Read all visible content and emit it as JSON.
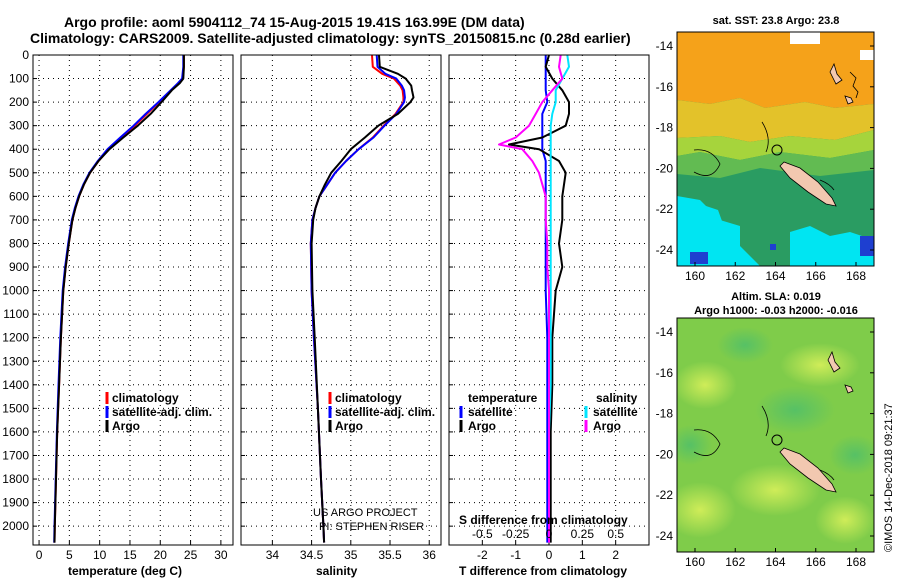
{
  "header": {
    "line1": "Argo profile: aoml 5904112_74 15-Aug-2015 19.41S 163.99E (DM data)",
    "line2": "Climatology: CARS2009. Satellite-adjusted climatology: synTS_20150815.nc (0.28d earlier)"
  },
  "credit": "©IMOS 14-Dec-2018 09:21:37",
  "depth_ticks": [
    0,
    100,
    200,
    300,
    400,
    500,
    600,
    700,
    800,
    900,
    1000,
    1100,
    1200,
    1300,
    1400,
    1500,
    1600,
    1700,
    1800,
    1900,
    2000
  ],
  "colors": {
    "climatology": "#ff0000",
    "satellite": "#0000ff",
    "argo": "#000000",
    "sal_satellite": "#00e5ff",
    "sal_climatology": "#ff00ff"
  },
  "chart_data": [
    {
      "type": "line",
      "xlabel": "temperature (deg C)",
      "ylabel": "",
      "xlim": [
        -1,
        32
      ],
      "ylim": [
        2080,
        0
      ],
      "x_ticks": [
        0,
        5,
        10,
        15,
        20,
        25,
        30
      ],
      "y": [
        0,
        50,
        100,
        120,
        150,
        200,
        250,
        300,
        350,
        400,
        450,
        500,
        550,
        600,
        650,
        700,
        800,
        900,
        1000,
        1200,
        1400,
        1600,
        1800,
        2000,
        2070
      ],
      "legend": [
        "climatology",
        "satellite-adj. clim.",
        "Argo"
      ],
      "series": [
        {
          "name": "climatology",
          "color": "#ff0000",
          "values": [
            23.9,
            23.9,
            23.7,
            23.0,
            21.8,
            19.8,
            17.8,
            15.8,
            13.6,
            11.5,
            9.8,
            8.4,
            7.4,
            6.6,
            6.0,
            5.5,
            4.9,
            4.4,
            4.0,
            3.6,
            3.3,
            3.0,
            2.8,
            2.6,
            2.55
          ]
        },
        {
          "name": "satellite-adj. clim.",
          "color": "#0000ff",
          "values": [
            23.8,
            23.8,
            23.6,
            22.9,
            21.7,
            19.7,
            17.6,
            15.6,
            13.4,
            11.3,
            9.7,
            8.3,
            7.3,
            6.5,
            5.9,
            5.4,
            4.8,
            4.3,
            3.9,
            3.5,
            3.2,
            2.95,
            2.75,
            2.55,
            2.5
          ]
        },
        {
          "name": "Argo",
          "color": "#000000",
          "values": [
            23.9,
            23.9,
            23.8,
            23.2,
            21.9,
            20.2,
            18.4,
            16.3,
            13.9,
            11.6,
            9.8,
            8.4,
            7.4,
            6.6,
            6.0,
            5.5,
            4.9,
            4.4,
            4.0,
            3.6,
            3.3,
            3.0,
            2.8,
            2.6,
            2.55
          ]
        }
      ]
    },
    {
      "type": "line",
      "xlabel": "salinity",
      "ylabel": "",
      "xlim": [
        33.6,
        36.15
      ],
      "ylim": [
        2080,
        0
      ],
      "x_ticks": [
        34,
        34.5,
        35,
        35.5,
        36
      ],
      "y": [
        0,
        50,
        80,
        100,
        130,
        150,
        180,
        200,
        250,
        300,
        350,
        400,
        450,
        500,
        550,
        600,
        650,
        700,
        800,
        1000,
        1200,
        1500,
        1800,
        2000,
        2070
      ],
      "legend": [
        "climatology",
        "satellite-adj. clim.",
        "Argo"
      ],
      "annotations": [
        "US ARGO PROJECT",
        "PI: STEPHEN RISER"
      ],
      "series": [
        {
          "name": "climatology",
          "color": "#ff0000",
          "values": [
            35.27,
            35.28,
            35.4,
            35.55,
            35.63,
            35.66,
            35.67,
            35.67,
            35.57,
            35.42,
            35.28,
            35.1,
            34.94,
            34.8,
            34.7,
            34.6,
            34.55,
            34.51,
            34.49,
            34.5,
            34.53,
            34.58,
            34.62,
            34.65,
            34.66
          ]
        },
        {
          "name": "satellite-adj. clim.",
          "color": "#0000ff",
          "values": [
            35.33,
            35.34,
            35.44,
            35.58,
            35.65,
            35.68,
            35.69,
            35.68,
            35.58,
            35.43,
            35.29,
            35.1,
            34.94,
            34.8,
            34.7,
            34.6,
            34.55,
            34.51,
            34.49,
            34.5,
            34.53,
            34.58,
            34.62,
            34.65,
            34.66
          ]
        },
        {
          "name": "Argo",
          "color": "#000000",
          "values": [
            35.36,
            35.37,
            35.6,
            35.7,
            35.77,
            35.78,
            35.8,
            35.76,
            35.6,
            35.35,
            35.18,
            35.0,
            34.88,
            34.75,
            34.67,
            34.6,
            34.55,
            34.52,
            34.5,
            34.51,
            34.54,
            34.58,
            34.62,
            34.65,
            34.66
          ]
        }
      ]
    },
    {
      "type": "line",
      "xlabel": "T difference from climatology",
      "title": "S difference from climatology",
      "ylabel": "",
      "xlim": [
        -3,
        3
      ],
      "ylim": [
        2080,
        0
      ],
      "x_ticks": [
        -2,
        -1,
        0,
        1,
        2
      ],
      "x_ticks_top": [
        "-0.5",
        "-0.25",
        "0",
        "0.25",
        "0.5"
      ],
      "y": [
        0,
        50,
        100,
        150,
        200,
        250,
        300,
        350,
        380,
        400,
        450,
        500,
        600,
        700,
        800,
        900,
        1000,
        1200,
        1400,
        1600,
        1800,
        2000,
        2070
      ],
      "legend_left_title": "temperature",
      "legend_right_title": "salinity",
      "legend": [
        "satellite",
        "Argo",
        "satellite",
        "Argo"
      ],
      "series": [
        {
          "name": "temperature satellite",
          "color": "#0000ff",
          "values": [
            -0.1,
            -0.1,
            -0.1,
            -0.1,
            -0.05,
            -0.2,
            -0.2,
            -0.2,
            -0.2,
            -0.2,
            -0.1,
            -0.1,
            -0.1,
            -0.1,
            -0.1,
            -0.1,
            -0.1,
            -0.05,
            -0.05,
            -0.05,
            -0.05,
            -0.05,
            -0.05
          ]
        },
        {
          "name": "temperature Argo",
          "color": "#000000",
          "values": [
            0.0,
            -0.1,
            0.1,
            0.4,
            0.6,
            0.6,
            0.5,
            -0.2,
            -1.2,
            -0.3,
            0.3,
            0.5,
            0.4,
            0.4,
            0.3,
            0.4,
            0.2,
            0.1,
            0.1,
            0.05,
            0.05,
            0.05,
            0.05
          ]
        },
        {
          "name": "salinity satellite",
          "color": "#00e5ff",
          "values": [
            0.55,
            0.6,
            0.4,
            0.2,
            0.2,
            0.1,
            0.05,
            0.05,
            0.05,
            0.05,
            0.05,
            0.05,
            0.05,
            0.05,
            0.05,
            0.05,
            0.05,
            0.05,
            0.05,
            0.0,
            0.0,
            0.0,
            0.0
          ]
        },
        {
          "name": "salinity Argo",
          "color": "#ff00ff",
          "values": [
            0.35,
            0.3,
            0.4,
            0.1,
            -0.2,
            -0.4,
            -0.6,
            -1.0,
            -1.5,
            -0.8,
            -0.5,
            -0.3,
            -0.1,
            -0.1,
            -0.05,
            -0.05,
            0.0,
            0.0,
            0.0,
            0.0,
            0.0,
            0.0,
            0.0
          ]
        }
      ]
    },
    {
      "type": "heatmap",
      "title": "sat. SST: 23.8 Argo: 23.8",
      "x_ticks": [
        "160",
        "162",
        "164",
        "166",
        "168"
      ],
      "y_ticks": [
        "-14",
        "-16",
        "-18",
        "-20",
        "-22",
        "-24"
      ]
    },
    {
      "type": "heatmap",
      "title": "Altim. SLA: 0.019",
      "subtitle": "Argo h1000: -0.03 h2000: -0.016",
      "x_ticks": [
        "160",
        "162",
        "164",
        "166",
        "168"
      ],
      "y_ticks": [
        "-14",
        "-16",
        "-18",
        "-20",
        "-22",
        "-24"
      ]
    }
  ]
}
